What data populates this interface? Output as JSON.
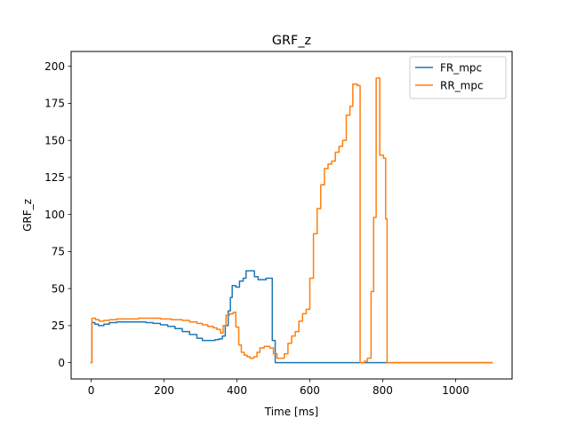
{
  "chart_data": {
    "type": "line",
    "title": "GRF_z",
    "xlabel": "Time [ms]",
    "ylabel": "GRF_z",
    "xlim": [
      -55,
      1155
    ],
    "ylim": [
      -11,
      210
    ],
    "xticks": [
      0,
      200,
      400,
      600,
      800,
      1000
    ],
    "yticks": [
      0,
      25,
      50,
      75,
      100,
      125,
      150,
      175,
      200
    ],
    "grid": false,
    "legend_position": "top-right",
    "series": [
      {
        "name": "FR_mpc",
        "color": "#1f77b4",
        "step": true,
        "points": [
          [
            0,
            0
          ],
          [
            2,
            27
          ],
          [
            10,
            26
          ],
          [
            20,
            25
          ],
          [
            35,
            26
          ],
          [
            50,
            27
          ],
          [
            70,
            27.5
          ],
          [
            100,
            27.5
          ],
          [
            130,
            27.5
          ],
          [
            150,
            27
          ],
          [
            170,
            26.5
          ],
          [
            190,
            25.5
          ],
          [
            210,
            24.5
          ],
          [
            230,
            23
          ],
          [
            250,
            21
          ],
          [
            270,
            19
          ],
          [
            290,
            16.5
          ],
          [
            305,
            15
          ],
          [
            325,
            15
          ],
          [
            340,
            15.5
          ],
          [
            350,
            16
          ],
          [
            360,
            18
          ],
          [
            368,
            25
          ],
          [
            376,
            35
          ],
          [
            382,
            44
          ],
          [
            387,
            52
          ],
          [
            397,
            51
          ],
          [
            407,
            55
          ],
          [
            417,
            57
          ],
          [
            425,
            62
          ],
          [
            440,
            62
          ],
          [
            448,
            58
          ],
          [
            458,
            56
          ],
          [
            470,
            56
          ],
          [
            480,
            57
          ],
          [
            490,
            57
          ],
          [
            497,
            15
          ],
          [
            505,
            0
          ],
          [
            1100,
            0
          ]
        ]
      },
      {
        "name": "RR_mpc",
        "color": "#ff7f0e",
        "step": true,
        "points": [
          [
            0,
            0
          ],
          [
            2,
            30
          ],
          [
            12,
            29
          ],
          [
            22,
            28
          ],
          [
            35,
            28.5
          ],
          [
            50,
            29
          ],
          [
            70,
            29.5
          ],
          [
            100,
            29.5
          ],
          [
            130,
            30
          ],
          [
            160,
            30
          ],
          [
            190,
            29.5
          ],
          [
            220,
            29
          ],
          [
            250,
            28.5
          ],
          [
            270,
            27.5
          ],
          [
            290,
            26.5
          ],
          [
            305,
            25.5
          ],
          [
            320,
            24.5
          ],
          [
            335,
            23.5
          ],
          [
            345,
            22.5
          ],
          [
            355,
            20
          ],
          [
            362,
            25
          ],
          [
            370,
            32
          ],
          [
            380,
            33
          ],
          [
            390,
            34
          ],
          [
            397,
            24
          ],
          [
            405,
            12
          ],
          [
            412,
            7
          ],
          [
            420,
            5
          ],
          [
            428,
            4
          ],
          [
            436,
            3
          ],
          [
            446,
            4
          ],
          [
            455,
            7
          ],
          [
            463,
            10
          ],
          [
            475,
            11
          ],
          [
            490,
            10
          ],
          [
            500,
            6
          ],
          [
            510,
            3
          ],
          [
            520,
            3
          ],
          [
            530,
            6
          ],
          [
            540,
            13
          ],
          [
            550,
            18
          ],
          [
            560,
            21
          ],
          [
            570,
            28
          ],
          [
            580,
            33
          ],
          [
            590,
            36
          ],
          [
            600,
            57
          ],
          [
            610,
            87
          ],
          [
            620,
            104
          ],
          [
            630,
            120
          ],
          [
            640,
            131
          ],
          [
            650,
            134
          ],
          [
            660,
            136
          ],
          [
            670,
            142
          ],
          [
            680,
            146
          ],
          [
            690,
            150
          ],
          [
            700,
            167
          ],
          [
            710,
            173
          ],
          [
            718,
            188
          ],
          [
            730,
            187
          ],
          [
            738,
            0
          ],
          [
            750,
            1
          ],
          [
            758,
            3
          ],
          [
            768,
            48
          ],
          [
            775,
            98
          ],
          [
            782,
            192
          ],
          [
            792,
            140
          ],
          [
            802,
            138
          ],
          [
            808,
            97
          ],
          [
            812,
            0
          ],
          [
            1100,
            0
          ]
        ]
      }
    ]
  }
}
